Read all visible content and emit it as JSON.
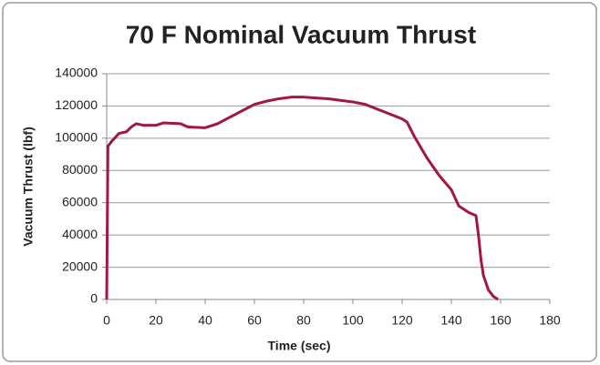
{
  "chart_data": {
    "type": "line",
    "title": "70 F Nominal Vacuum Thrust",
    "x_label": "Time (sec)",
    "y_label": "Vacuum Thrust (lbf)",
    "x": [
      0,
      0.5,
      2,
      5,
      8,
      10,
      12,
      15,
      20,
      23,
      30,
      33,
      40,
      45,
      50,
      55,
      60,
      65,
      70,
      75,
      80,
      85,
      90,
      95,
      100,
      105,
      110,
      115,
      120,
      122,
      125,
      130,
      135,
      140,
      143,
      147,
      150,
      151,
      152,
      153,
      155,
      157,
      159
    ],
    "series": [
      {
        "name": "Vacuum Thrust",
        "color": "#a3173f",
        "values": [
          0,
          95000,
          98000,
          103000,
          104000,
          107000,
          109000,
          108000,
          108000,
          109500,
          109000,
          107000,
          106500,
          109000,
          113000,
          117000,
          121000,
          123000,
          124500,
          125500,
          125500,
          125000,
          124500,
          123500,
          122500,
          121000,
          118000,
          115000,
          112000,
          110000,
          101000,
          88000,
          77000,
          68000,
          58000,
          54000,
          52000,
          40000,
          25000,
          15000,
          6000,
          2000,
          0
        ]
      }
    ],
    "xlim": [
      0,
      180
    ],
    "xticks": [
      0,
      20,
      40,
      60,
      80,
      100,
      120,
      140,
      160,
      180
    ],
    "ylim": [
      0,
      140000
    ],
    "yticks": [
      0,
      20000,
      40000,
      60000,
      80000,
      100000,
      120000,
      140000
    ],
    "grid": true
  }
}
